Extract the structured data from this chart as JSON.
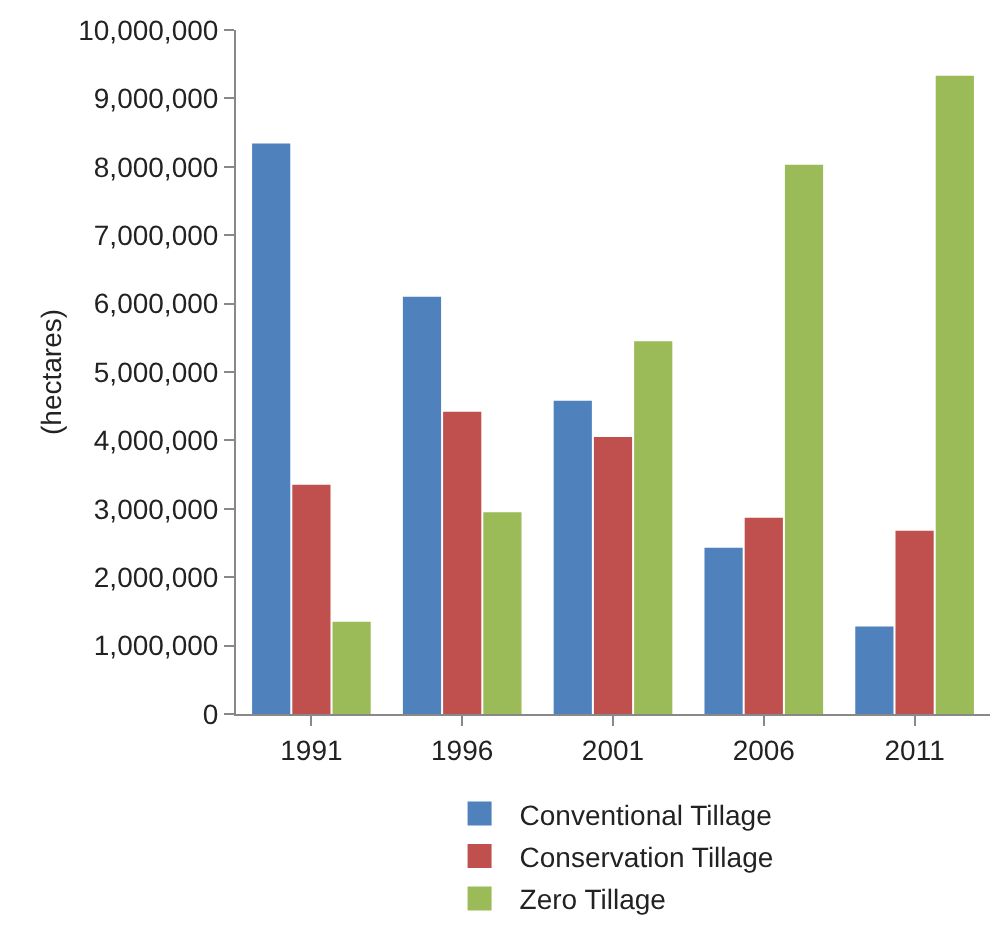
{
  "chart_data": {
    "type": "bar",
    "ylabel": "(hectares)",
    "categories": [
      "1991",
      "1996",
      "2001",
      "2006",
      "2011"
    ],
    "series": [
      {
        "name": "Conventional Tillage",
        "color": "#4f81bd",
        "values": [
          8340000,
          6100000,
          4580000,
          2430000,
          1280000
        ]
      },
      {
        "name": "Conservation Tillage",
        "color": "#c0504d",
        "values": [
          3350000,
          4420000,
          4050000,
          2870000,
          2680000
        ]
      },
      {
        "name": "Zero Tillage",
        "color": "#9bbb59",
        "values": [
          1350000,
          2950000,
          5450000,
          8030000,
          9330000
        ]
      }
    ],
    "ylim": [
      0,
      10000000
    ],
    "yticks": [
      {
        "value": 0,
        "label": "0"
      },
      {
        "value": 1000000,
        "label": "1,000,000"
      },
      {
        "value": 2000000,
        "label": "2,000,000"
      },
      {
        "value": 3000000,
        "label": "3,000,000"
      },
      {
        "value": 4000000,
        "label": "4,000,000"
      },
      {
        "value": 5000000,
        "label": "5,000,000"
      },
      {
        "value": 6000000,
        "label": "6,000,000"
      },
      {
        "value": 7000000,
        "label": "7,000,000"
      },
      {
        "value": 8000000,
        "label": "8,000,000"
      },
      {
        "value": 9000000,
        "label": "9,000,000"
      },
      {
        "value": 10000000,
        "label": "10,000,000"
      }
    ],
    "grid": false,
    "legend": "bottom"
  }
}
